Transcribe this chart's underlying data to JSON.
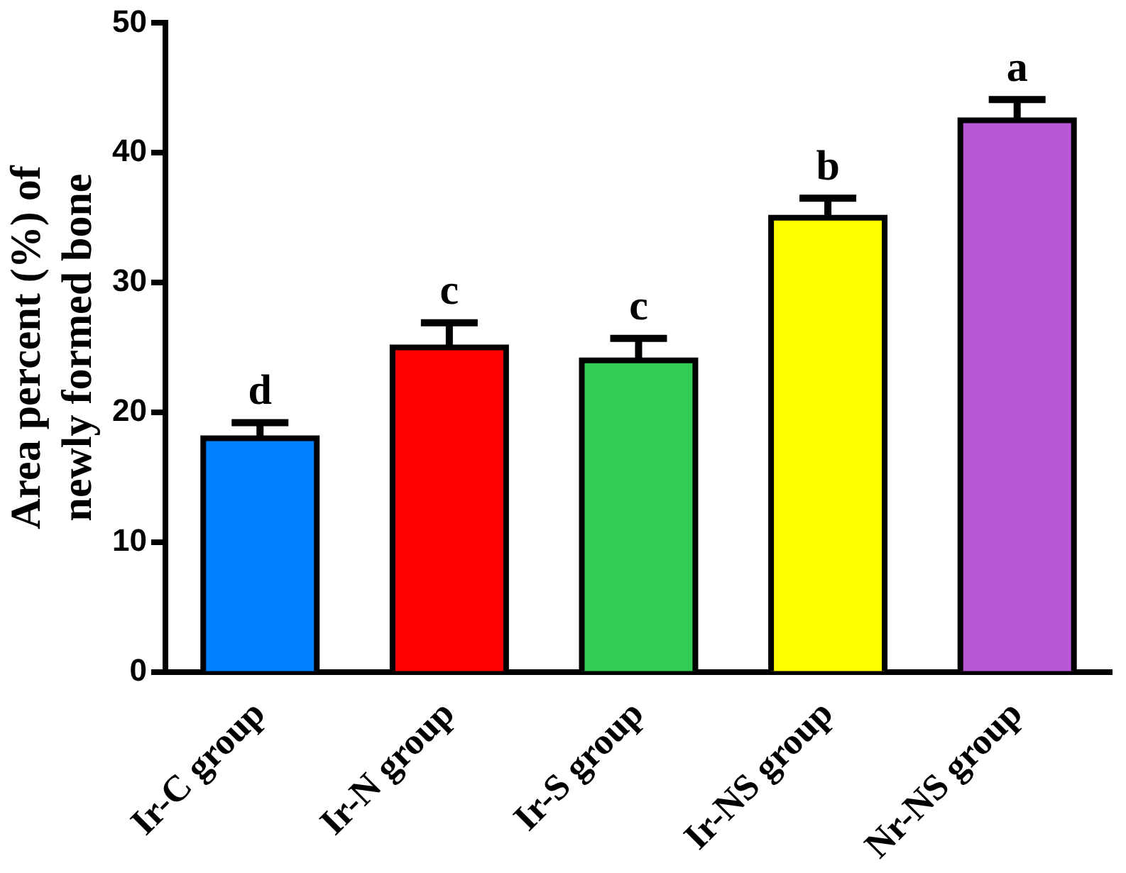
{
  "chart_data": {
    "type": "bar",
    "ylabel": "Area percent (%) of newly formed bone",
    "categories": [
      "Ir-C group",
      "Ir-N group",
      "Ir-S group",
      "Ir-NS group",
      "Nr-NS group"
    ],
    "values": [
      18,
      25,
      24,
      35,
      42.5
    ],
    "colors": [
      "#0080ff",
      "#ff0000",
      "#33cc55",
      "#ffff00",
      "#b957d6"
    ],
    "errors": [
      [
        18,
        19.2
      ],
      [
        25,
        26.9
      ],
      [
        24,
        25.7
      ],
      [
        35,
        36.5
      ],
      [
        42.5,
        44.1
      ]
    ],
    "ylim": [
      0,
      50
    ],
    "yticks": [
      0,
      10,
      20,
      30,
      40,
      50
    ],
    "grid": false,
    "legend": false,
    "annotations": [
      {
        "text": "d",
        "x": "Ir-C group",
        "y": 19.2
      },
      {
        "text": "c",
        "x": "Ir-N group",
        "y": 26.9
      },
      {
        "text": "c",
        "x": "Ir-S group",
        "y": 25.7
      },
      {
        "text": "b",
        "x": "Ir-NS group",
        "y": 36.5
      },
      {
        "text": "a",
        "x": "Nr-NS group",
        "y": 44.1
      }
    ]
  }
}
